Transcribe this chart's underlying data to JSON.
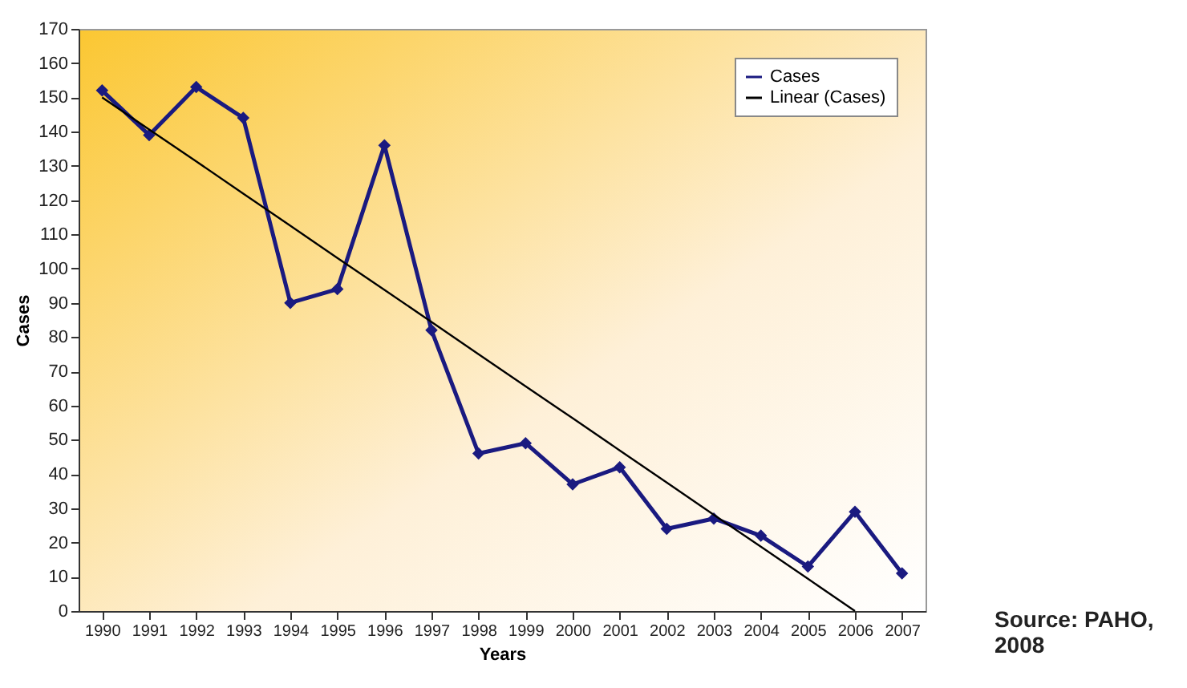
{
  "chart_data": {
    "type": "line",
    "xlabel": "Years",
    "ylabel": "Cases",
    "categories": [
      "1990",
      "1991",
      "1992",
      "1993",
      "1994",
      "1995",
      "1996",
      "1997",
      "1998",
      "1999",
      "2000",
      "2001",
      "2002",
      "2003",
      "2004",
      "2005",
      "2006",
      "2007"
    ],
    "series": [
      {
        "name": "Cases",
        "color": "#1a1a80",
        "marker": "diamond",
        "values": [
          152,
          139,
          153,
          144,
          90,
          94,
          136,
          82,
          46,
          49,
          37,
          42,
          24,
          27,
          22,
          13,
          29,
          11
        ]
      },
      {
        "name": "Linear (Cases)",
        "type": "line",
        "color": "#000000",
        "marker": "none",
        "values": [
          150,
          140.6,
          131.3,
          121.9,
          112.5,
          103.1,
          93.8,
          84.4,
          75,
          65.6,
          56.3,
          46.9,
          37.5,
          28.1,
          18.8,
          9.4,
          0,
          null
        ]
      }
    ],
    "ylim": [
      0,
      170
    ],
    "yticks": [
      0,
      10,
      20,
      30,
      40,
      50,
      60,
      70,
      80,
      90,
      100,
      110,
      120,
      130,
      140,
      150,
      160,
      170
    ],
    "grid": false,
    "legend": "top right",
    "annotations": [
      "Source: PAHO, 2008"
    ]
  }
}
